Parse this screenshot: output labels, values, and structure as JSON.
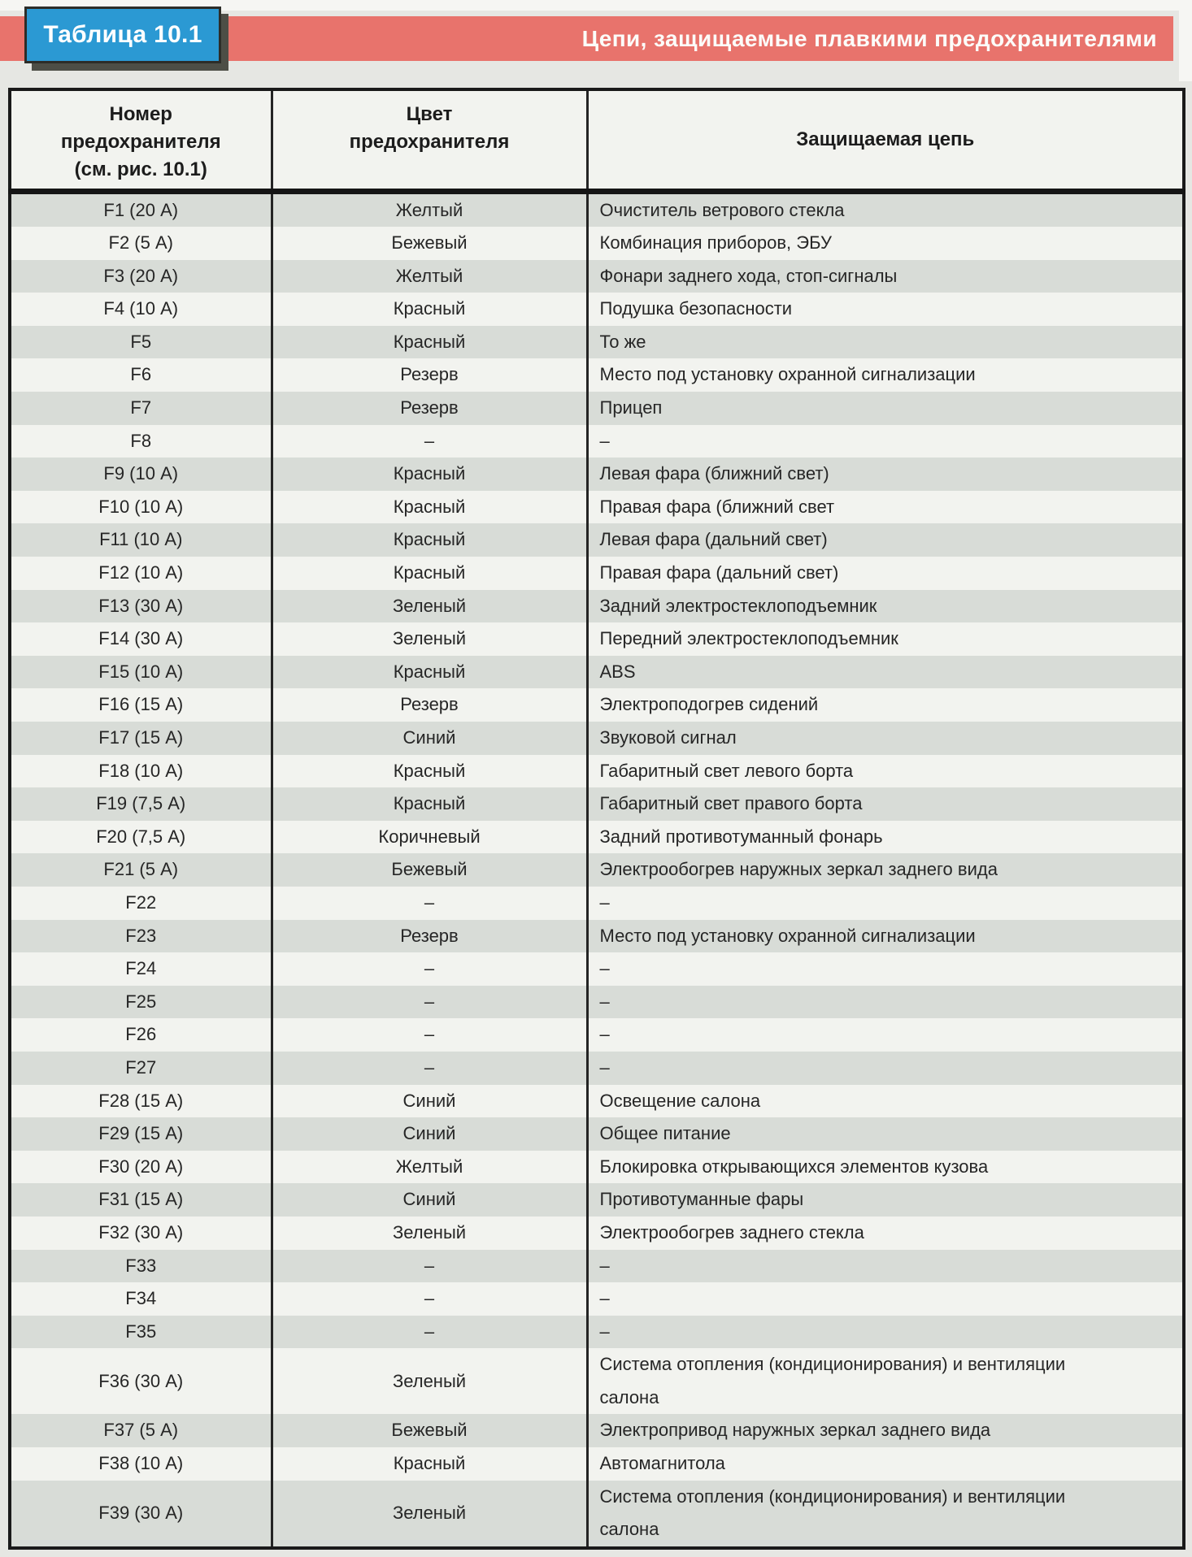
{
  "header": {
    "table_label": "Таблица 10.1",
    "banner_title": "Цепи, защищаемые плавкими предохранителями"
  },
  "table": {
    "headers": {
      "number": "Номер\nпредохранителя\n(см. рис. 10.1)",
      "color": "Цвет\nпредохранителя",
      "circuit": "Защищаемая цепь"
    },
    "rows": [
      {
        "number": "F1 (20 А)",
        "color": "Желтый",
        "circuit": "Очиститель ветрового стекла"
      },
      {
        "number": "F2 (5 А)",
        "color": "Бежевый",
        "circuit": "Комбинация приборов, ЭБУ"
      },
      {
        "number": "F3 (20 А)",
        "color": "Желтый",
        "circuit": "Фонари заднего хода, стоп-сигналы"
      },
      {
        "number": "F4 (10 А)",
        "color": "Красный",
        "circuit": "Подушка безопасности"
      },
      {
        "number": "F5",
        "color": "Красный",
        "circuit": "То же"
      },
      {
        "number": "F6",
        "color": "Резерв",
        "circuit": "Место под установку охранной сигнализации"
      },
      {
        "number": "F7",
        "color": "Резерв",
        "circuit": "Прицеп"
      },
      {
        "number": "F8",
        "color": "–",
        "circuit": "–"
      },
      {
        "number": "F9 (10 А)",
        "color": "Красный",
        "circuit": "Левая фара (ближний свет)"
      },
      {
        "number": "F10 (10 А)",
        "color": "Красный",
        "circuit": "Правая фара (ближний свет"
      },
      {
        "number": "F11 (10 А)",
        "color": "Красный",
        "circuit": "Левая фара (дальний свет)"
      },
      {
        "number": "F12 (10 А)",
        "color": "Красный",
        "circuit": "Правая фара (дальний свет)"
      },
      {
        "number": "F13 (30 А)",
        "color": "Зеленый",
        "circuit": "Задний электростеклоподъемник"
      },
      {
        "number": "F14 (30 А)",
        "color": "Зеленый",
        "circuit": "Передний электростеклоподъемник"
      },
      {
        "number": "F15 (10 А)",
        "color": "Красный",
        "circuit": "ABS"
      },
      {
        "number": "F16 (15 А)",
        "color": "Резерв",
        "circuit": "Электроподогрев сидений"
      },
      {
        "number": "F17 (15 А)",
        "color": "Синий",
        "circuit": "Звуковой сигнал"
      },
      {
        "number": "F18 (10 А)",
        "color": "Красный",
        "circuit": "Габаритный свет левого борта"
      },
      {
        "number": "F19 (7,5 А)",
        "color": "Красный",
        "circuit": "Габаритный свет правого борта"
      },
      {
        "number": "F20 (7,5 А)",
        "color": "Коричневый",
        "circuit": "Задний противотуманный фонарь"
      },
      {
        "number": "F21 (5 А)",
        "color": "Бежевый",
        "circuit": "Электрообогрев наружных зеркал заднего вида"
      },
      {
        "number": "F22",
        "color": "–",
        "circuit": "–"
      },
      {
        "number": "F23",
        "color": "Резерв",
        "circuit": "Место под установку охранной сигнализации"
      },
      {
        "number": "F24",
        "color": "–",
        "circuit": "–"
      },
      {
        "number": "F25",
        "color": "–",
        "circuit": "–"
      },
      {
        "number": "F26",
        "color": "–",
        "circuit": "–"
      },
      {
        "number": "F27",
        "color": "–",
        "circuit": "–"
      },
      {
        "number": "F28 (15 А)",
        "color": "Синий",
        "circuit": "Освещение салона"
      },
      {
        "number": "F29 (15 А)",
        "color": "Синий",
        "circuit": "Общее питание"
      },
      {
        "number": "F30 (20 А)",
        "color": "Желтый",
        "circuit": "Блокировка открывающихся элементов кузова"
      },
      {
        "number": "F31 (15 А)",
        "color": "Синий",
        "circuit": "Противотуманные фары"
      },
      {
        "number": "F32 (30 А)",
        "color": "Зеленый",
        "circuit": "Электрообогрев заднего стекла"
      },
      {
        "number": "F33",
        "color": "–",
        "circuit": "–"
      },
      {
        "number": "F34",
        "color": "–",
        "circuit": "–"
      },
      {
        "number": "F35",
        "color": "–",
        "circuit": "–"
      },
      {
        "number": "F36 (30 А)",
        "color": "Зеленый",
        "circuit": "Система отопления (кондиционирования) и вентиляции\nсалона"
      },
      {
        "number": "F37 (5 А)",
        "color": "Бежевый",
        "circuit": "Электропривод наружных зеркал заднего вида"
      },
      {
        "number": "F38 (10 А)",
        "color": "Красный",
        "circuit": "Автомагнитола"
      },
      {
        "number": "F39 (30 А)",
        "color": "Зеленый",
        "circuit": "Система отопления (кондиционирования) и вентиляции\nсалона"
      }
    ]
  },
  "colors": {
    "banner_red": "#e8736c",
    "badge_blue": "#2b99d3",
    "row_shade": "#d8dcd7",
    "row_plain": "#f2f3ef",
    "page_bg": "#e6e7e3"
  }
}
